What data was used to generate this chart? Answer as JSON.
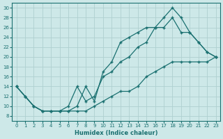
{
  "xlabel": "Humidex (Indice chaleur)",
  "bg_color": "#cde8e8",
  "grid_color": "#afd0d0",
  "line_color": "#1a7070",
  "xlim": [
    -0.5,
    23.5
  ],
  "ylim": [
    7,
    31
  ],
  "xticks": [
    0,
    1,
    2,
    3,
    4,
    5,
    6,
    7,
    8,
    9,
    10,
    11,
    12,
    13,
    14,
    15,
    16,
    17,
    18,
    19,
    20,
    21,
    22,
    23
  ],
  "yticks": [
    8,
    10,
    12,
    14,
    16,
    18,
    20,
    22,
    24,
    26,
    28,
    30
  ],
  "line1_x": [
    0,
    1,
    2,
    3,
    4,
    5,
    6,
    7,
    8,
    9,
    10,
    11,
    12,
    13,
    14,
    15,
    16,
    17,
    18,
    19,
    20,
    21,
    22,
    23
  ],
  "line1_y": [
    14,
    12,
    10,
    9,
    9,
    9,
    9,
    10,
    14,
    11,
    17,
    19,
    23,
    24,
    25,
    26,
    26,
    28,
    30,
    28,
    25,
    23,
    21,
    20
  ],
  "line2_x": [
    0,
    1,
    2,
    3,
    4,
    5,
    6,
    7,
    8,
    9,
    10,
    11,
    12,
    13,
    14,
    15,
    16,
    17,
    18,
    19,
    20,
    21,
    22,
    23
  ],
  "line2_y": [
    14,
    12,
    10,
    9,
    9,
    9,
    10,
    14,
    11,
    12,
    16,
    17,
    19,
    20,
    22,
    23,
    26,
    26,
    28,
    25,
    25,
    23,
    21,
    20
  ],
  "line3_x": [
    0,
    1,
    2,
    3,
    4,
    5,
    6,
    7,
    8,
    9,
    10,
    11,
    12,
    13,
    14,
    15,
    16,
    17,
    18,
    19,
    20,
    21,
    22,
    23
  ],
  "line3_y": [
    14,
    12,
    10,
    9,
    9,
    9,
    9,
    9,
    9,
    10,
    11,
    12,
    13,
    13,
    14,
    16,
    17,
    18,
    19,
    19,
    19,
    19,
    19,
    20
  ]
}
